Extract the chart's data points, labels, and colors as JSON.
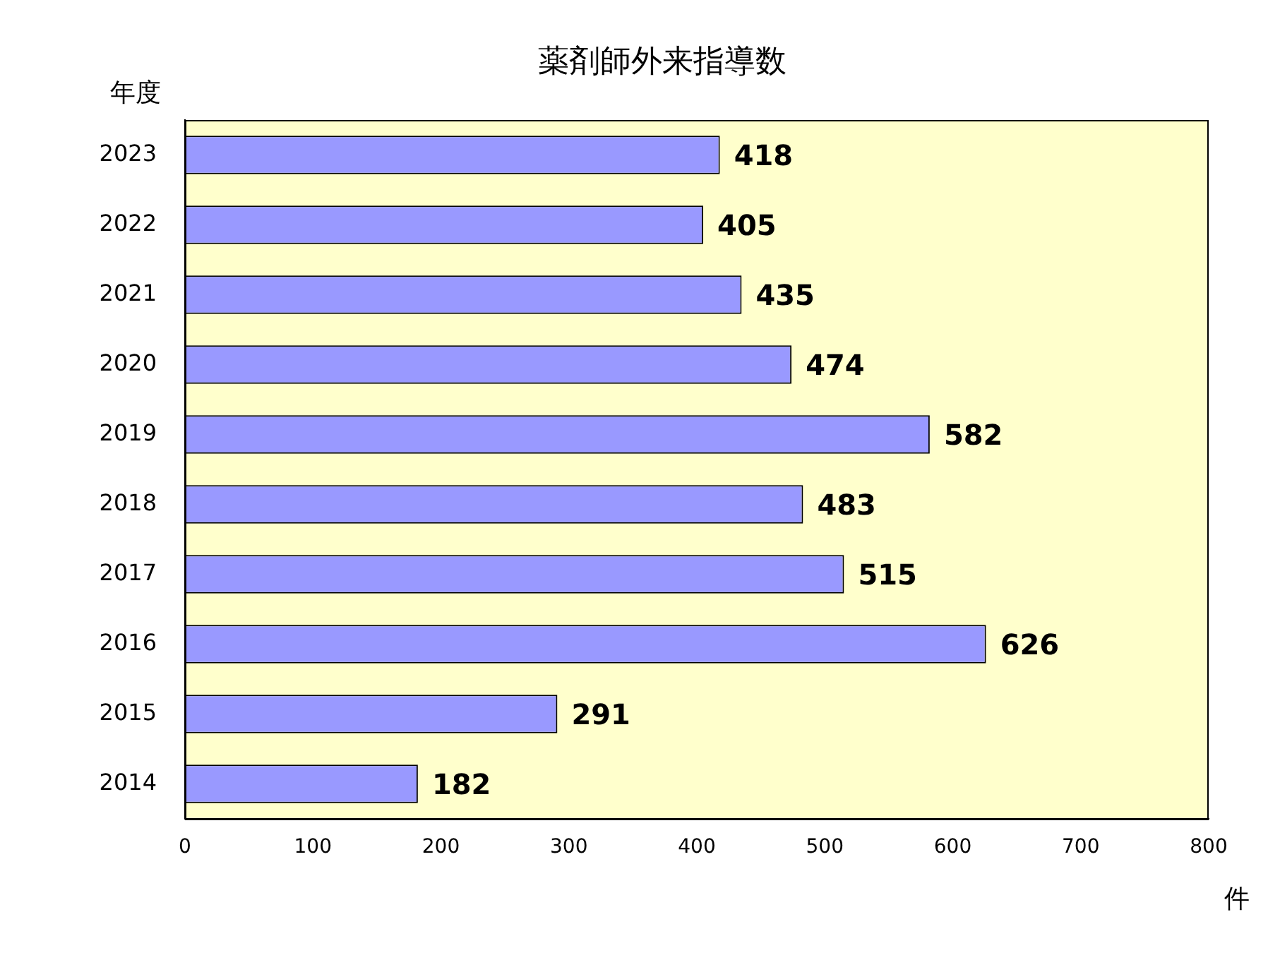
{
  "chart_data": {
    "type": "bar",
    "orientation": "horizontal",
    "title": "薬剤師外来指導数",
    "ylabel": "年度",
    "xlabel": "件",
    "categories": [
      "2023",
      "2022",
      "2021",
      "2020",
      "2019",
      "2018",
      "2017",
      "2016",
      "2015",
      "2014"
    ],
    "values": [
      418,
      405,
      435,
      474,
      582,
      483,
      515,
      626,
      291,
      182
    ],
    "color": "#9999ff",
    "xlim": [
      0,
      800
    ],
    "xticks": [
      0,
      100,
      200,
      300,
      400,
      500,
      600,
      700,
      800
    ],
    "grid": false,
    "legend": false,
    "data_labels": true
  }
}
